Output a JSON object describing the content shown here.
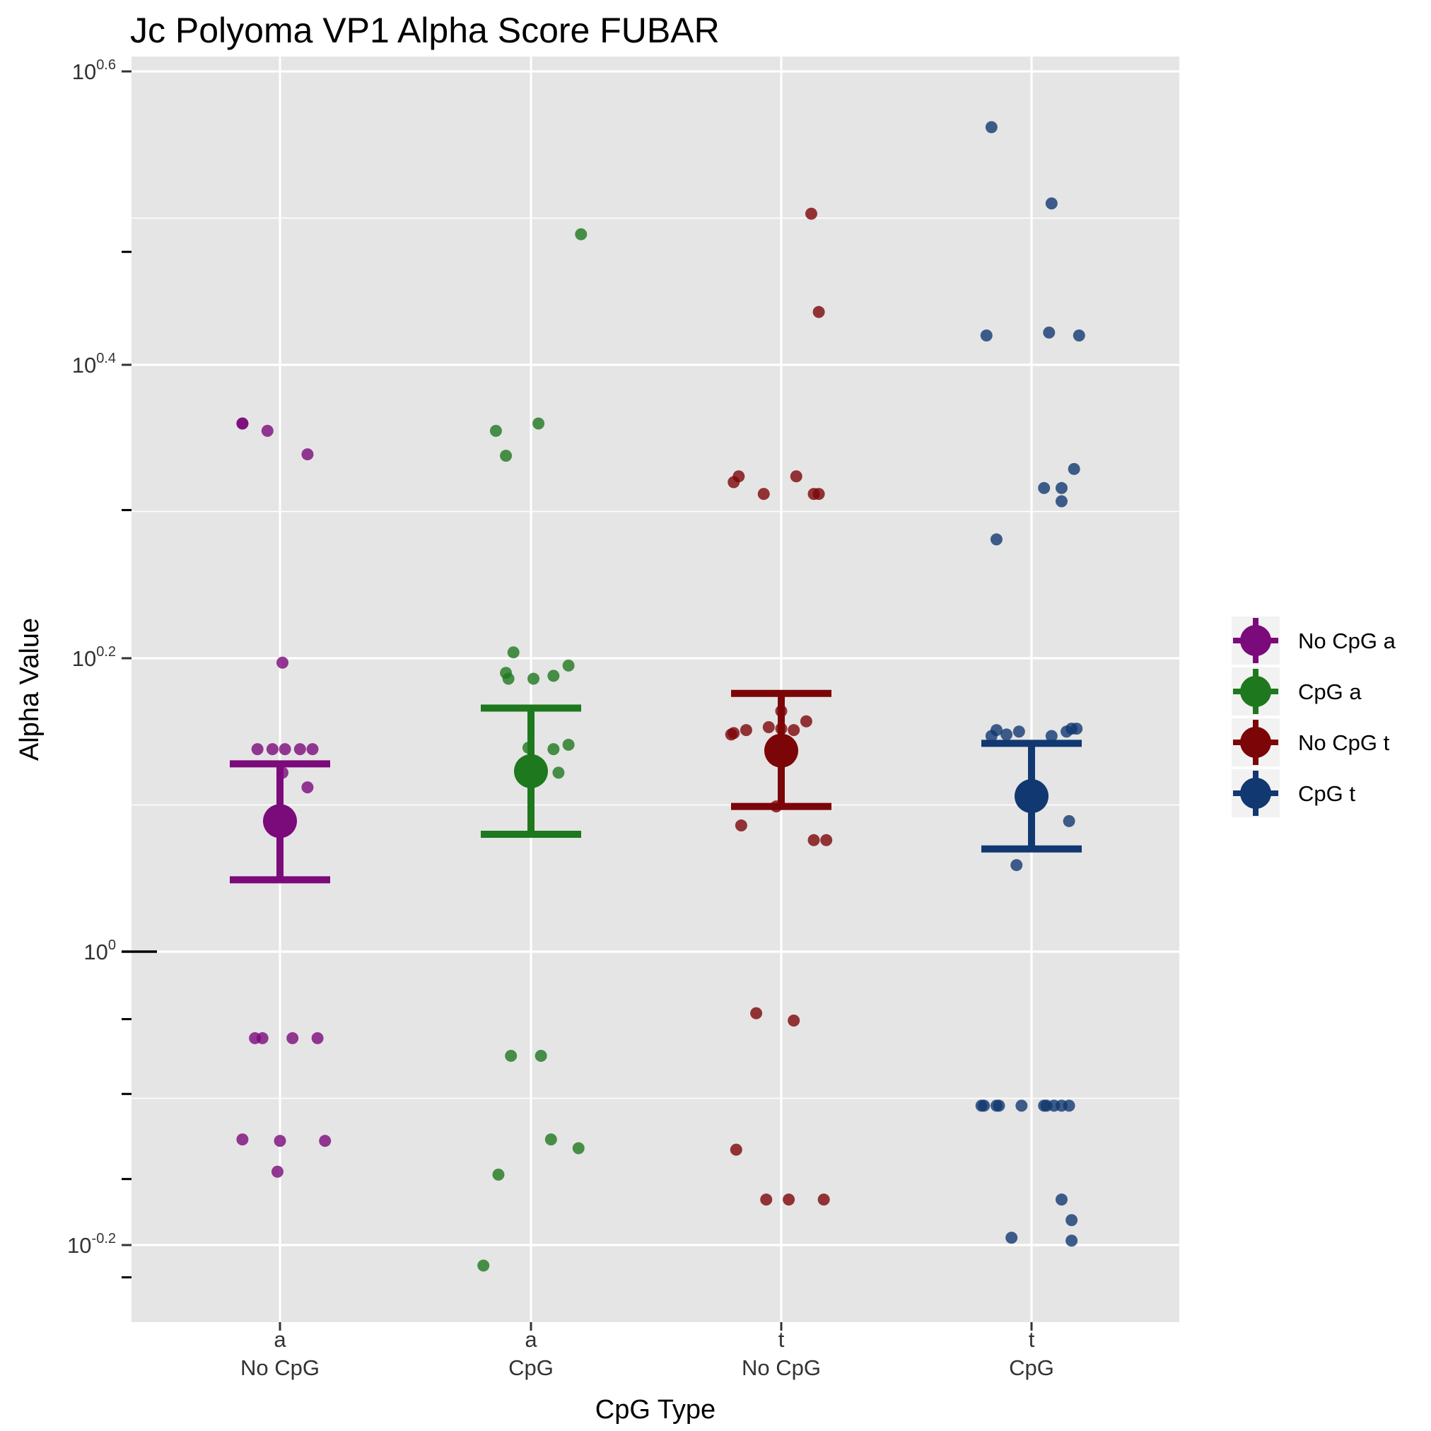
{
  "chart_data": {
    "type": "scatter",
    "title": "Jc Polyoma VP1 Alpha Score FUBAR",
    "xlabel": "CpG Type",
    "ylabel": "Alpha Value",
    "y_scale": "log10",
    "ylim": [
      -0.254,
      0.602
    ],
    "y_ticks": [
      {
        "exponent": 0.6,
        "label_base": "10",
        "label_exp": "0.6"
      },
      {
        "exponent": 0.4,
        "label_base": "10",
        "label_exp": "0.4"
      },
      {
        "exponent": 0.2,
        "label_base": "10",
        "label_exp": "0.2"
      },
      {
        "exponent": 0.0,
        "label_base": "10",
        "label_exp": "0"
      },
      {
        "exponent": -0.2,
        "label_base": "10",
        "label_exp": "-0.2"
      }
    ],
    "y_minor_ticks": [
      0.5,
      0.3,
      0.1,
      -0.1
    ],
    "y_extra_ticks": [
      0.477,
      0.301,
      -0.046,
      -0.097,
      -0.155,
      -0.222
    ],
    "categories": [
      {
        "line1": "a",
        "line2": "No CpG"
      },
      {
        "line1": "a",
        "line2": "CpG"
      },
      {
        "line1": "t",
        "line2": "No CpG"
      },
      {
        "line1": "t",
        "line2": "CpG"
      }
    ],
    "grid": true,
    "legend_position": "right",
    "series": [
      {
        "name": "No CpG a",
        "color": "#7b0a7b",
        "mean": 0.089,
        "error": [
          0.049,
          0.128
        ],
        "points": [
          [
            -0.15,
            0.36
          ],
          [
            -0.15,
            0.36
          ],
          [
            -0.05,
            0.355
          ],
          [
            0.11,
            0.339
          ],
          [
            0.01,
            0.197
          ],
          [
            -0.09,
            0.138
          ],
          [
            -0.03,
            0.138
          ],
          [
            0.02,
            0.138
          ],
          [
            0.08,
            0.138
          ],
          [
            0.13,
            0.138
          ],
          [
            0.01,
            0.122
          ],
          [
            0.11,
            0.112
          ],
          [
            -0.1,
            -0.059
          ],
          [
            -0.07,
            -0.059
          ],
          [
            0.05,
            -0.059
          ],
          [
            0.15,
            -0.059
          ],
          [
            -0.15,
            -0.128
          ],
          [
            0.0,
            -0.129
          ],
          [
            0.18,
            -0.129
          ],
          [
            -0.01,
            -0.15
          ]
        ]
      },
      {
        "name": "CpG a",
        "color": "#1e781e",
        "mean": 0.123,
        "error": [
          0.08,
          0.166
        ],
        "points": [
          [
            0.2,
            0.489
          ],
          [
            0.03,
            0.36
          ],
          [
            -0.14,
            0.355
          ],
          [
            -0.1,
            0.338
          ],
          [
            -0.07,
            0.204
          ],
          [
            -0.1,
            0.19
          ],
          [
            -0.09,
            0.186
          ],
          [
            0.01,
            0.186
          ],
          [
            0.09,
            0.188
          ],
          [
            0.15,
            0.195
          ],
          [
            -0.01,
            0.139
          ],
          [
            0.09,
            0.138
          ],
          [
            0.15,
            0.141
          ],
          [
            0.11,
            0.122
          ],
          [
            -0.08,
            -0.071
          ],
          [
            0.04,
            -0.071
          ],
          [
            0.08,
            -0.128
          ],
          [
            0.19,
            -0.134
          ],
          [
            -0.13,
            -0.152
          ],
          [
            -0.19,
            -0.214
          ]
        ]
      },
      {
        "name": "No CpG t",
        "color": "#7c0508",
        "mean": 0.137,
        "error": [
          0.099,
          0.176
        ],
        "points": [
          [
            0.12,
            0.503
          ],
          [
            0.15,
            0.436
          ],
          [
            0.06,
            0.324
          ],
          [
            -0.17,
            0.324
          ],
          [
            -0.19,
            0.32
          ],
          [
            -0.07,
            0.312
          ],
          [
            0.13,
            0.312
          ],
          [
            0.15,
            0.312
          ],
          [
            0.0,
            0.164
          ],
          [
            0.1,
            0.157
          ],
          [
            -0.05,
            0.153
          ],
          [
            0.0,
            0.152
          ],
          [
            -0.14,
            0.151
          ],
          [
            -0.19,
            0.149
          ],
          [
            -0.2,
            0.148
          ],
          [
            0.05,
            0.151
          ],
          [
            -0.02,
            0.099
          ],
          [
            -0.16,
            0.086
          ],
          [
            0.13,
            0.076
          ],
          [
            0.18,
            0.076
          ],
          [
            -0.1,
            -0.042
          ],
          [
            0.05,
            -0.047
          ],
          [
            -0.18,
            -0.135
          ],
          [
            -0.06,
            -0.169
          ],
          [
            0.03,
            -0.169
          ],
          [
            0.17,
            -0.169
          ]
        ]
      },
      {
        "name": "CpG t",
        "color": "#113870",
        "mean": 0.106,
        "error": [
          0.07,
          0.142
        ],
        "points": [
          [
            -0.16,
            0.562
          ],
          [
            0.08,
            0.51
          ],
          [
            -0.18,
            0.42
          ],
          [
            0.07,
            0.422
          ],
          [
            0.19,
            0.42
          ],
          [
            0.17,
            0.329
          ],
          [
            0.05,
            0.316
          ],
          [
            0.12,
            0.316
          ],
          [
            0.12,
            0.307
          ],
          [
            -0.14,
            0.281
          ],
          [
            -0.14,
            0.151
          ],
          [
            -0.05,
            0.15
          ],
          [
            -0.1,
            0.148
          ],
          [
            0.16,
            0.152
          ],
          [
            0.14,
            0.15
          ],
          [
            0.18,
            0.152
          ],
          [
            0.08,
            0.147
          ],
          [
            -0.16,
            0.147
          ],
          [
            0.15,
            0.089
          ],
          [
            -0.06,
            0.059
          ],
          [
            -0.2,
            -0.105
          ],
          [
            -0.19,
            -0.105
          ],
          [
            -0.14,
            -0.105
          ],
          [
            -0.13,
            -0.105
          ],
          [
            -0.04,
            -0.105
          ],
          [
            0.05,
            -0.105
          ],
          [
            0.06,
            -0.105
          ],
          [
            0.09,
            -0.105
          ],
          [
            0.12,
            -0.105
          ],
          [
            0.15,
            -0.105
          ],
          [
            0.12,
            -0.169
          ],
          [
            0.16,
            -0.183
          ],
          [
            -0.08,
            -0.195
          ],
          [
            0.16,
            -0.197
          ]
        ]
      }
    ]
  }
}
